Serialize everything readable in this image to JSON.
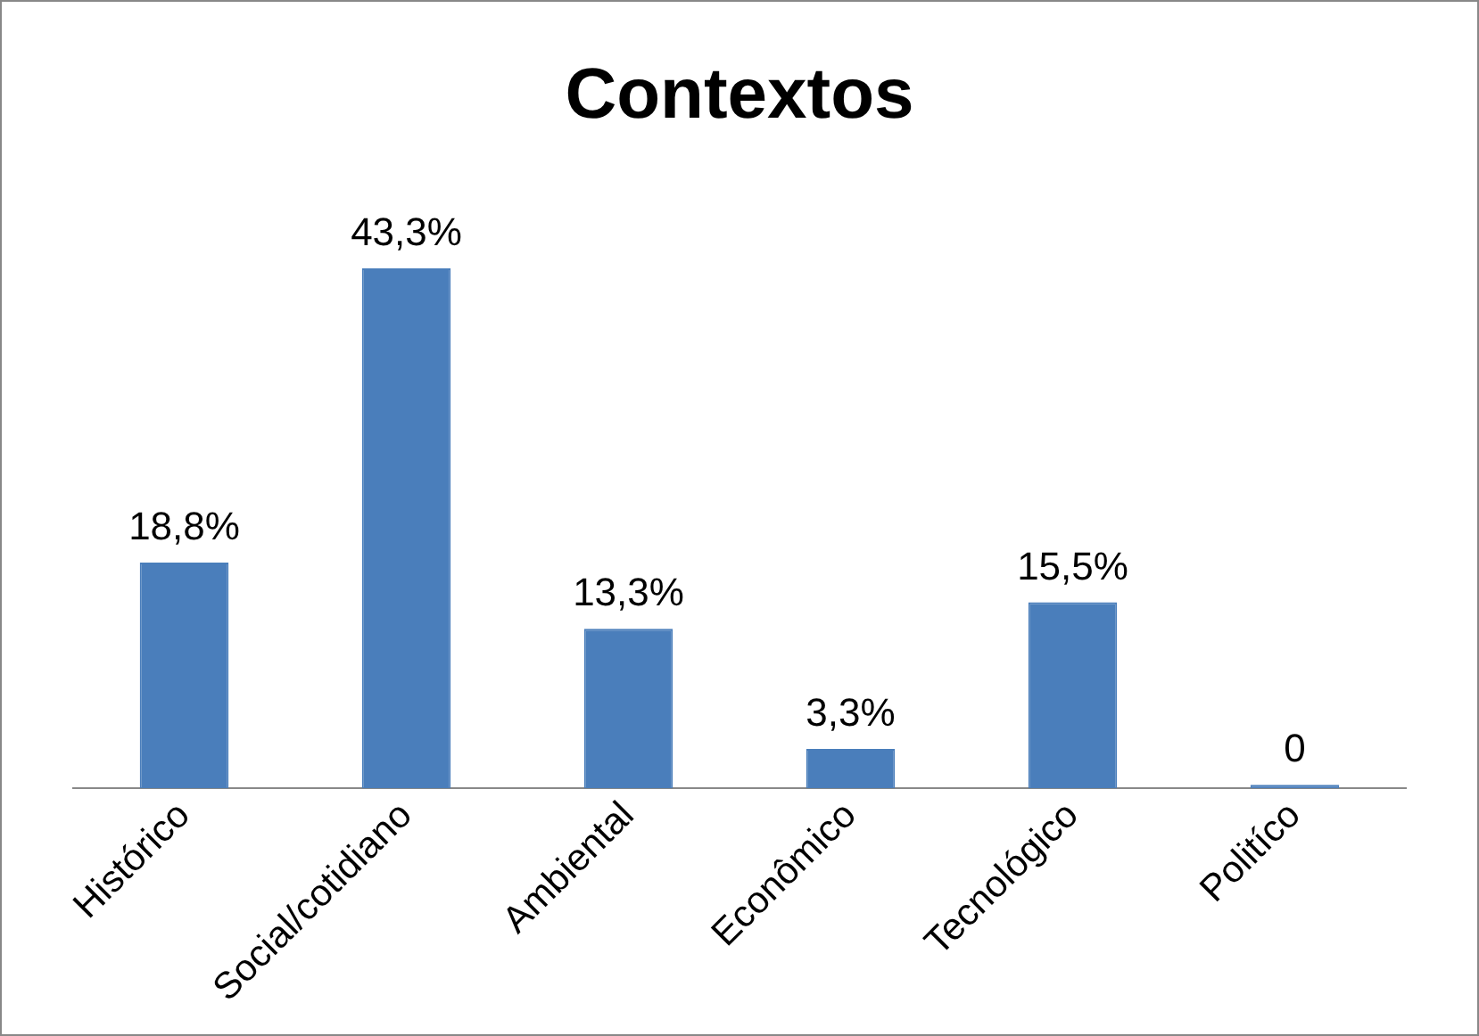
{
  "chart_data": {
    "type": "bar",
    "title": "Contextos",
    "categories": [
      "Histórico",
      "Social/cotidiano",
      "Ambiental",
      "Econômico",
      "Tecnológico",
      "Politíco"
    ],
    "values": [
      18.8,
      43.3,
      13.3,
      3.3,
      15.5,
      0
    ],
    "value_labels": [
      "18,8%",
      "43,3%",
      "13,3%",
      "3,3%",
      "15,5%",
      "0"
    ],
    "color": "#4a7ebb"
  }
}
